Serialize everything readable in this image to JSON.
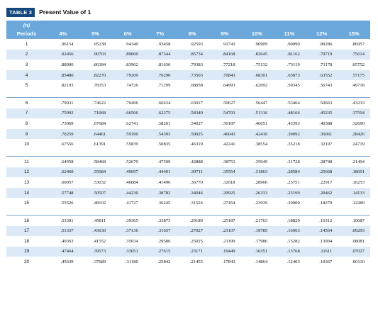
{
  "title": {
    "badge": "TABLE 3",
    "text": "Present Value of 1"
  },
  "header": {
    "n_label": "(n)",
    "periods_label": "Periods",
    "rates": [
      "4%",
      "5%",
      "6%",
      "7%",
      "8%",
      "9%",
      "10%",
      "11%",
      "12%",
      "15%"
    ]
  },
  "groups": [
    [
      {
        "period": "1",
        "values": [
          ".96154",
          ".95238",
          ".94340",
          ".93458",
          ".92593",
          ".91743",
          ".90909",
          ".90090",
          ".89286",
          ".86957"
        ]
      },
      {
        "period": "2",
        "values": [
          ".92456",
          ".90703",
          ".89000",
          ".87344",
          ".85734",
          ".84168",
          ".82645",
          ".81162",
          ".79719",
          ".75614"
        ]
      },
      {
        "period": "3",
        "values": [
          ".88900",
          ".86384",
          ".83962",
          ".81630",
          ".79383",
          ".77218",
          ".75132",
          ".73119",
          ".71178",
          ".65752"
        ]
      },
      {
        "period": "4",
        "values": [
          ".85480",
          ".82270",
          ".79209",
          ".76290",
          ".73503",
          ".70843",
          ".68301",
          ".65873",
          ".63552",
          ".57175"
        ]
      },
      {
        "period": "5",
        "values": [
          ".82193",
          ".78353",
          ".74726",
          ".71299",
          ".68058",
          ".64993",
          ".62092",
          ".59345",
          ".56743",
          ".49718"
        ]
      }
    ],
    [
      {
        "period": "6",
        "values": [
          ".79031",
          ".74622",
          ".70496",
          ".66634",
          ".63017",
          ".59627",
          ".56447",
          ".53464",
          ".50663",
          ".43233"
        ]
      },
      {
        "period": "7",
        "values": [
          ".75992",
          ".71068",
          ".66506",
          ".62275",
          ".58349",
          ".54703",
          ".51316",
          ".48166",
          ".45235",
          ".37594"
        ]
      },
      {
        "period": "8",
        "values": [
          ".73069",
          ".67684",
          ".62741",
          ".58201",
          ".54027",
          ".50187",
          ".46651",
          ".43393",
          ".40388",
          ".32690"
        ]
      },
      {
        "period": "9",
        "values": [
          ".70259",
          ".64461",
          ".59190",
          ".54393",
          ".50025",
          ".46043",
          ".42410",
          ".39092",
          ".36061",
          ".28426"
        ]
      },
      {
        "period": "10",
        "values": [
          ".67556",
          ".61391",
          ".55839",
          ".50835",
          ".46319",
          ".42241",
          ".38554",
          ".35218",
          ".32197",
          ".24719"
        ]
      }
    ],
    [
      {
        "period": "11",
        "values": [
          ".64958",
          ".58468",
          ".52679",
          ".47509",
          ".42888",
          ".38753",
          ".35049",
          ".31728",
          ".28748",
          ".21494"
        ]
      },
      {
        "period": "12",
        "values": [
          ".62460",
          ".55684",
          ".49697",
          ".44401",
          ".39711",
          ".35554",
          ".31863",
          ".28584",
          ".25668",
          ".18691"
        ]
      },
      {
        "period": "13",
        "values": [
          ".60057",
          ".53032",
          ".46884",
          ".41496",
          ".36770",
          ".32618",
          ".28966",
          ".25751",
          ".22917",
          ".16253"
        ]
      },
      {
        "period": "14",
        "values": [
          ".57748",
          ".50507",
          ".44230",
          ".38782",
          ".34046",
          ".29925",
          ".26333",
          ".23199",
          ".20462",
          ".14133"
        ]
      },
      {
        "period": "15",
        "values": [
          ".55526",
          ".48102",
          ".41727",
          ".36245",
          ".31524",
          ".27454",
          ".23939",
          ".20900",
          ".18270",
          ".12289"
        ]
      }
    ],
    [
      {
        "period": "16",
        "values": [
          ".53391",
          ".45811",
          ".39365",
          ".33873",
          ".29189",
          ".25187",
          ".21763",
          ".18829",
          ".16312",
          ".10687"
        ]
      },
      {
        "period": "17",
        "values": [
          ".51337",
          ".43630",
          ".37136",
          ".31657",
          ".27027",
          ".23107",
          ".19785",
          ".16963",
          ".14564",
          ".09293"
        ]
      },
      {
        "period": "18",
        "values": [
          ".49363",
          ".41552",
          ".35034",
          ".29586",
          ".25025",
          ".21199",
          ".17986",
          ".15282",
          ".13004",
          ".08081"
        ]
      },
      {
        "period": "19",
        "values": [
          ".47464",
          ".39573",
          ".33051",
          ".27615",
          ".23171",
          ".19449",
          ".16351",
          ".13768",
          ".11611",
          ".07027"
        ]
      },
      {
        "period": "20",
        "values": [
          ".45639",
          ".37689",
          ".31180",
          ".25842",
          ".21455",
          ".17843",
          ".14864",
          ".12403",
          ".10367",
          ".06110"
        ]
      }
    ]
  ],
  "colors": {
    "badge_bg": "#13477d",
    "header_bg": "#6aa7db",
    "row_shade": "#dceaf7"
  }
}
